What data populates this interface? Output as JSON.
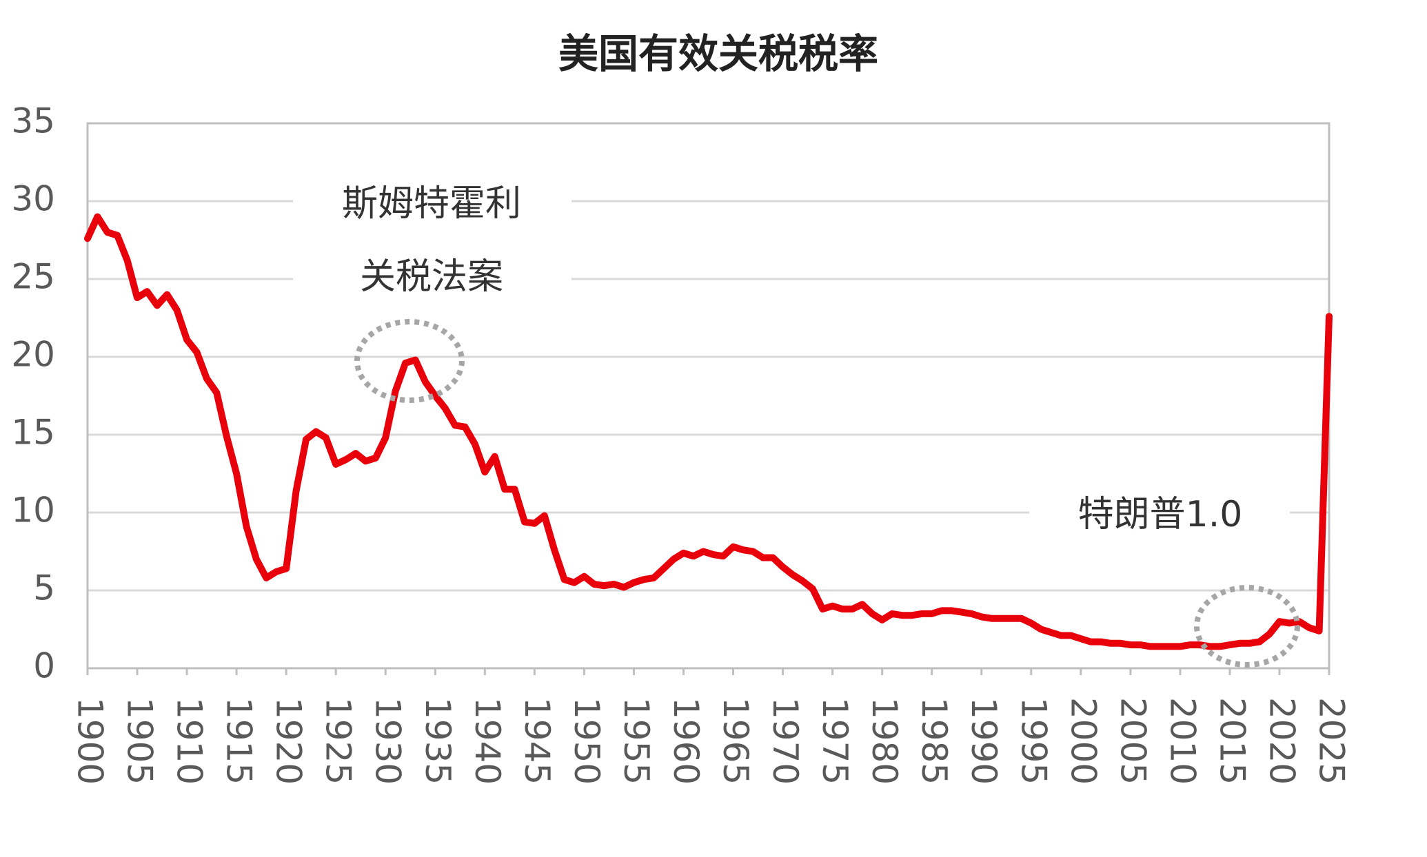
{
  "chart_data": {
    "type": "line",
    "title": "美国有效关税税率",
    "x": [
      1900,
      1901,
      1902,
      1903,
      1904,
      1905,
      1906,
      1907,
      1908,
      1909,
      1910,
      1911,
      1912,
      1913,
      1914,
      1915,
      1916,
      1917,
      1918,
      1919,
      1920,
      1921,
      1922,
      1923,
      1924,
      1925,
      1926,
      1927,
      1928,
      1929,
      1930,
      1931,
      1932,
      1933,
      1934,
      1935,
      1936,
      1937,
      1938,
      1939,
      1940,
      1941,
      1942,
      1943,
      1944,
      1945,
      1946,
      1947,
      1948,
      1949,
      1950,
      1951,
      1952,
      1953,
      1954,
      1955,
      1956,
      1957,
      1958,
      1959,
      1960,
      1961,
      1962,
      1963,
      1964,
      1965,
      1966,
      1967,
      1968,
      1969,
      1970,
      1971,
      1972,
      1973,
      1974,
      1975,
      1976,
      1977,
      1978,
      1979,
      1980,
      1981,
      1982,
      1983,
      1984,
      1985,
      1986,
      1987,
      1988,
      1989,
      1990,
      1991,
      1992,
      1993,
      1994,
      1995,
      1996,
      1997,
      1998,
      1999,
      2000,
      2001,
      2002,
      2003,
      2004,
      2005,
      2006,
      2007,
      2008,
      2009,
      2010,
      2011,
      2012,
      2013,
      2014,
      2015,
      2016,
      2017,
      2018,
      2019,
      2020,
      2021,
      2022,
      2023,
      2024,
      2025
    ],
    "series": [
      {
        "name": "美国有效关税税率",
        "color": "#e8000b",
        "values": [
          27.6,
          29.0,
          28.0,
          27.8,
          26.2,
          23.8,
          24.2,
          23.3,
          24.0,
          23.0,
          21.1,
          20.3,
          18.6,
          17.7,
          14.9,
          12.5,
          9.1,
          7.0,
          5.8,
          6.2,
          6.4,
          11.4,
          14.7,
          15.2,
          14.8,
          13.1,
          13.4,
          13.8,
          13.3,
          13.5,
          14.8,
          17.8,
          19.6,
          19.8,
          18.4,
          17.5,
          16.7,
          15.6,
          15.5,
          14.4,
          12.6,
          13.6,
          11.5,
          11.5,
          9.4,
          9.3,
          9.8,
          7.6,
          5.7,
          5.5,
          5.9,
          5.4,
          5.3,
          5.4,
          5.2,
          5.5,
          5.7,
          5.8,
          6.4,
          7.0,
          7.4,
          7.2,
          7.5,
          7.3,
          7.2,
          7.8,
          7.6,
          7.5,
          7.1,
          7.1,
          6.5,
          6.0,
          5.6,
          5.1,
          3.8,
          4.0,
          3.8,
          3.8,
          4.1,
          3.5,
          3.1,
          3.5,
          3.4,
          3.4,
          3.5,
          3.5,
          3.7,
          3.7,
          3.6,
          3.5,
          3.3,
          3.2,
          3.2,
          3.2,
          3.2,
          2.9,
          2.5,
          2.3,
          2.1,
          2.1,
          1.9,
          1.7,
          1.7,
          1.6,
          1.6,
          1.5,
          1.5,
          1.4,
          1.4,
          1.4,
          1.4,
          1.5,
          1.5,
          1.4,
          1.4,
          1.5,
          1.6,
          1.6,
          1.7,
          2.2,
          3.0,
          2.9,
          3.0,
          2.6,
          2.4,
          22.6
        ]
      }
    ],
    "xlim": [
      1900,
      2025
    ],
    "xticks": [
      1900,
      1905,
      1910,
      1915,
      1920,
      1925,
      1930,
      1935,
      1940,
      1945,
      1950,
      1955,
      1960,
      1965,
      1970,
      1975,
      1980,
      1985,
      1990,
      1995,
      2000,
      2005,
      2010,
      2015,
      2020,
      2025
    ],
    "ylim": [
      0,
      35
    ],
    "yticks": [
      0,
      5,
      10,
      15,
      20,
      25,
      30,
      35
    ],
    "grid": true,
    "annotations": [
      "斯姆特霍利",
      "关税法案",
      "特朗普1.0"
    ]
  }
}
